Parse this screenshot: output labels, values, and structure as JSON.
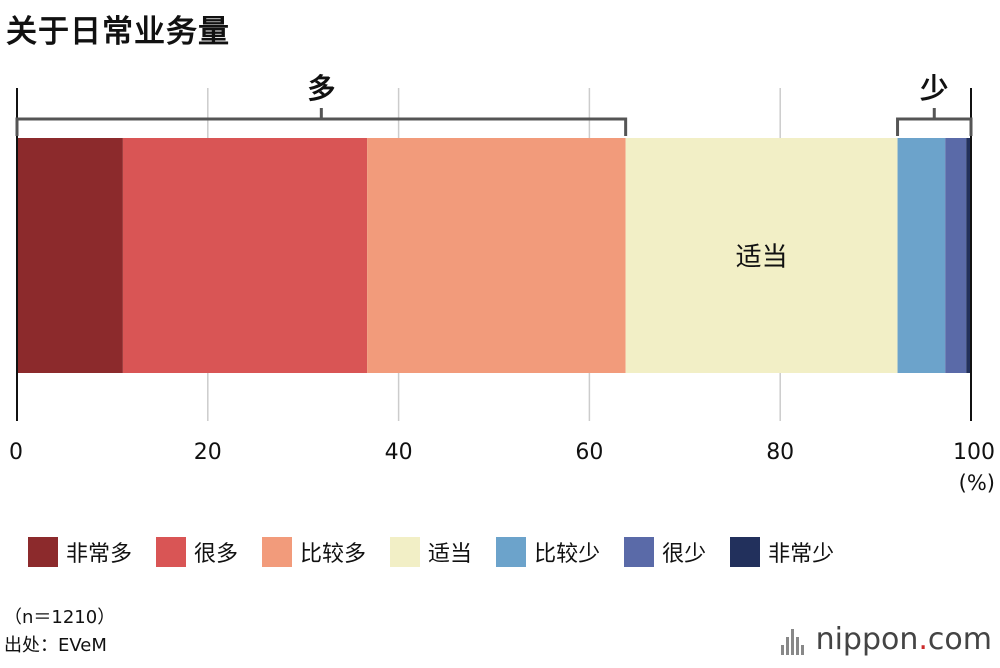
{
  "chart_data": {
    "type": "bar",
    "orientation": "horizontal-stacked",
    "title": "关于日常业务量",
    "xlim": [
      0,
      100
    ],
    "x_ticks": [
      0,
      20,
      40,
      60,
      80,
      100
    ],
    "x_unit": "(%)",
    "grid": true,
    "legend_position": "bottom",
    "categories": [
      "非常多",
      "很多",
      "比较多",
      "适当",
      "比较少",
      "很少",
      "非常少"
    ],
    "series": [
      {
        "name": "非常多",
        "value": 11.1,
        "color": "#8c2a2c"
      },
      {
        "name": "很多",
        "value": 25.6,
        "color": "#d95555"
      },
      {
        "name": "比较多",
        "value": 27.1,
        "color": "#f29b7b"
      },
      {
        "name": "适当",
        "value": 28.5,
        "color": "#f2efc6",
        "label": "适当"
      },
      {
        "name": "比较少",
        "value": 5.0,
        "color": "#6ca3cb"
      },
      {
        "name": "很少",
        "value": 2.2,
        "color": "#5a6aa8"
      },
      {
        "name": "非常少",
        "value": 0.5,
        "color": "#22305c"
      }
    ],
    "brackets": [
      {
        "label": "多",
        "from": 0,
        "to": 63.8
      },
      {
        "label": "少",
        "from": 92.3,
        "to": 100
      }
    ]
  },
  "notes": {
    "sample": "（n＝1210）",
    "source": "出处：EVeM"
  },
  "brand": {
    "name": "nippon",
    "dot": ".",
    "suffix": "com"
  }
}
